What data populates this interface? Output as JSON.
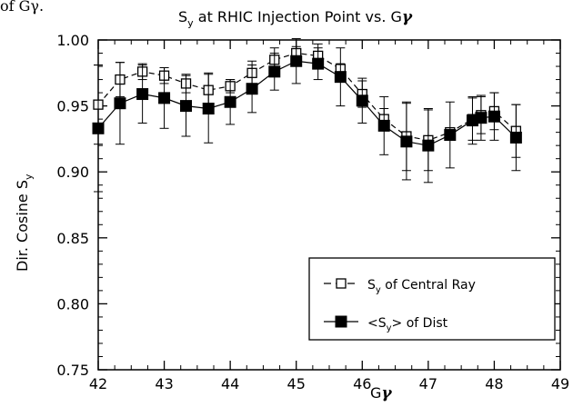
{
  "top_cut_text": "of Gγ.",
  "chart_data": {
    "type": "line",
    "title": "S_y at RHIC Injection Point vs. Gγ",
    "title_main": "S",
    "title_sub": "y",
    "title_rest": " at RHIC Injection Point vs. G",
    "title_gamma": "γ",
    "xlabel_g": "G",
    "xlabel_gamma": "γ",
    "ylabel_main": "Dir. Cosine S",
    "ylabel_sub": "y",
    "xlim": [
      42,
      49
    ],
    "ylim": [
      0.75,
      1.0
    ],
    "xticks": [
      42,
      43,
      44,
      45,
      46,
      47,
      48,
      49
    ],
    "yticks": [
      0.75,
      0.8,
      0.85,
      0.9,
      0.95,
      1.0
    ],
    "xtick_labels": [
      "42",
      "43",
      "44",
      "45",
      "46",
      "47",
      "48",
      "49"
    ],
    "ytick_labels": [
      "0.75",
      "0.80",
      "0.85",
      "0.90",
      "0.95",
      "1.00"
    ],
    "grid": false,
    "legend_position": "bottom-right",
    "series": [
      {
        "name": "S_y of Central Ray",
        "legend_main": "S",
        "legend_sub": "y",
        "legend_rest": " of Central Ray",
        "marker": "open-square",
        "line": "dashed",
        "color": "#000000",
        "x": [
          42.0,
          42.33,
          42.67,
          43.0,
          43.33,
          43.67,
          44.0,
          44.33,
          44.67,
          45.0,
          45.33,
          45.67,
          46.0,
          46.33,
          46.67,
          47.0,
          47.33,
          47.67,
          47.8,
          48.0,
          48.33
        ],
        "y": [
          0.951,
          0.97,
          0.976,
          0.973,
          0.967,
          0.962,
          0.965,
          0.975,
          0.985,
          0.99,
          0.988,
          0.978,
          0.959,
          0.94,
          0.927,
          0.924,
          0.93,
          0.94,
          0.943,
          0.946,
          0.931
        ],
        "err": [
          0.03,
          0.013,
          0.006,
          0.006,
          0.007,
          0.013,
          0.005,
          0.009,
          0.009,
          0.005,
          0.009,
          0.004,
          0.01,
          0.008,
          0.026,
          0.023,
          0.002,
          0.016,
          0.014,
          0.014,
          0.02
        ]
      },
      {
        "name": "<S_y> of Dist",
        "legend_pre": "<S",
        "legend_sub": "y",
        "legend_rest": "> of Dist",
        "marker": "filled-square",
        "line": "solid",
        "color": "#000000",
        "x": [
          42.0,
          42.33,
          42.67,
          43.0,
          43.33,
          43.67,
          44.0,
          44.33,
          44.67,
          45.0,
          45.33,
          45.67,
          46.0,
          46.33,
          46.67,
          47.0,
          47.33,
          47.67,
          47.8,
          48.0,
          48.33
        ],
        "y": [
          0.933,
          0.952,
          0.959,
          0.956,
          0.95,
          0.948,
          0.953,
          0.963,
          0.976,
          0.984,
          0.982,
          0.972,
          0.954,
          0.935,
          0.923,
          0.92,
          0.928,
          0.939,
          0.941,
          0.942,
          0.926
        ],
        "err": [
          0.048,
          0.031,
          0.022,
          0.023,
          0.023,
          0.026,
          0.017,
          0.018,
          0.014,
          0.017,
          0.012,
          0.022,
          0.017,
          0.022,
          0.029,
          0.028,
          0.025,
          0.018,
          0.017,
          0.018,
          0.025
        ]
      }
    ]
  }
}
